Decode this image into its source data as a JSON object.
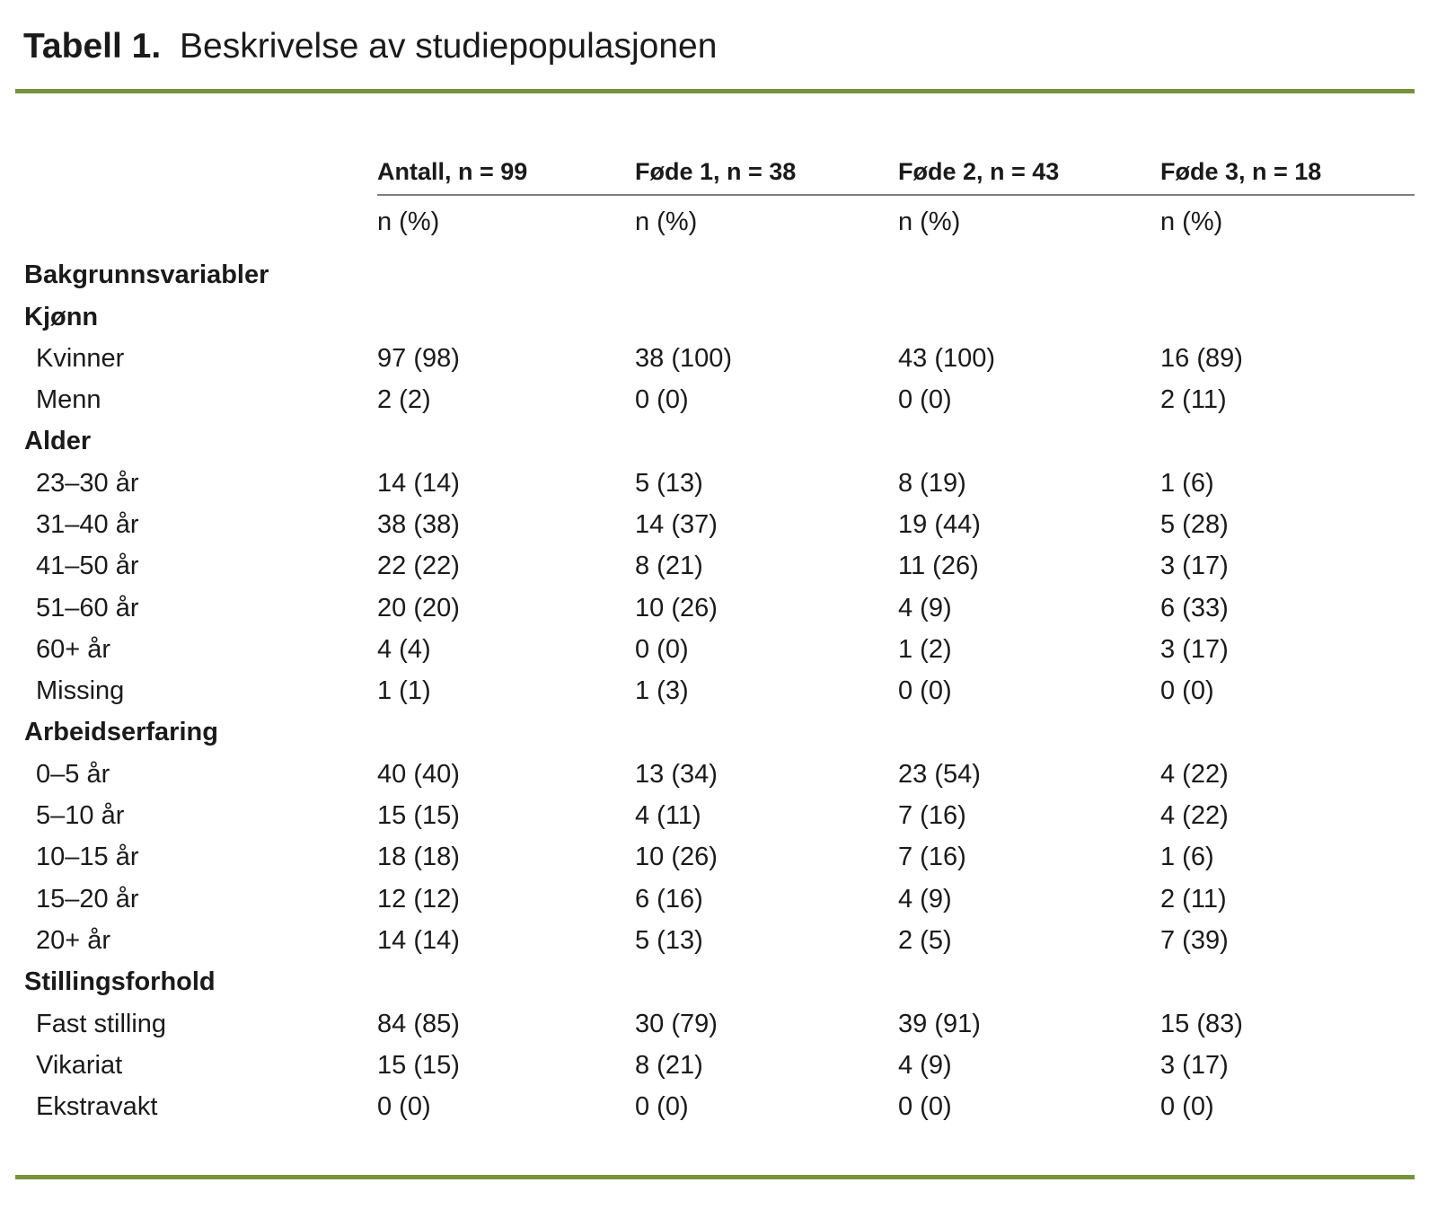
{
  "title": {
    "label": "Tabell 1.",
    "text": "Beskrivelse av studiepopulasjonen"
  },
  "columns": [
    {
      "header": "Antall, n = 99",
      "subheader": "n (%)"
    },
    {
      "header": "Føde 1, n = 38",
      "subheader": "n (%)"
    },
    {
      "header": "Føde 2, n = 43",
      "subheader": "n (%)"
    },
    {
      "header": "Føde 3, n = 18",
      "subheader": "n (%)"
    }
  ],
  "sections": [
    {
      "label": "Bakgrunnsvariabler",
      "rows": []
    },
    {
      "label": "Kjønn",
      "rows": [
        {
          "label": "Kvinner",
          "values": [
            "97 (98)",
            "38 (100)",
            "43 (100)",
            "16 (89)"
          ]
        },
        {
          "label": "Menn",
          "values": [
            "2 (2)",
            "0 (0)",
            "0 (0)",
            "2 (11)"
          ]
        }
      ]
    },
    {
      "label": "Alder",
      "rows": [
        {
          "label": "23–30 år",
          "values": [
            "14 (14)",
            "5 (13)",
            "8 (19)",
            "1 (6)"
          ]
        },
        {
          "label": "31–40 år",
          "values": [
            "38 (38)",
            "14 (37)",
            "19 (44)",
            "5 (28)"
          ]
        },
        {
          "label": "41–50 år",
          "values": [
            "22 (22)",
            "8 (21)",
            "11 (26)",
            "3 (17)"
          ]
        },
        {
          "label": "51–60 år",
          "values": [
            "20 (20)",
            "10 (26)",
            "4 (9)",
            "6 (33)"
          ]
        },
        {
          "label": "60+ år",
          "values": [
            "4 (4)",
            "0 (0)",
            "1 (2)",
            "3 (17)"
          ]
        },
        {
          "label": "Missing",
          "values": [
            "1 (1)",
            "1 (3)",
            "0 (0)",
            "0 (0)"
          ]
        }
      ]
    },
    {
      "label": "Arbeidserfaring",
      "rows": [
        {
          "label": "0–5 år",
          "values": [
            "40 (40)",
            "13 (34)",
            "23 (54)",
            "4 (22)"
          ]
        },
        {
          "label": "5–10 år",
          "values": [
            "15 (15)",
            "4 (11)",
            "7 (16)",
            "4 (22)"
          ]
        },
        {
          "label": "10–15 år",
          "values": [
            "18 (18)",
            "10 (26)",
            "7 (16)",
            "1 (6)"
          ]
        },
        {
          "label": "15–20 år",
          "values": [
            "12 (12)",
            "6 (16)",
            "4 (9)",
            "2 (11)"
          ]
        },
        {
          "label": "20+ år",
          "values": [
            "14 (14)",
            "5 (13)",
            "2 (5)",
            "7 (39)"
          ]
        }
      ]
    },
    {
      "label": "Stillingsforhold",
      "rows": [
        {
          "label": "Fast stilling",
          "values": [
            "84 (85)",
            "30 (79)",
            "39 (91)",
            "15 (83)"
          ]
        },
        {
          "label": "Vikariat",
          "values": [
            "15 (15)",
            "8 (21)",
            "4 (9)",
            "3 (17)"
          ]
        },
        {
          "label": "Ekstravakt",
          "values": [
            "0 (0)",
            "0 (0)",
            "0 (0)",
            "0 (0)"
          ]
        }
      ]
    }
  ],
  "colors": {
    "accent_rule": "#76923c",
    "header_underline": "#7f7f7f",
    "text": "#1a1a1a",
    "background": "#ffffff"
  }
}
